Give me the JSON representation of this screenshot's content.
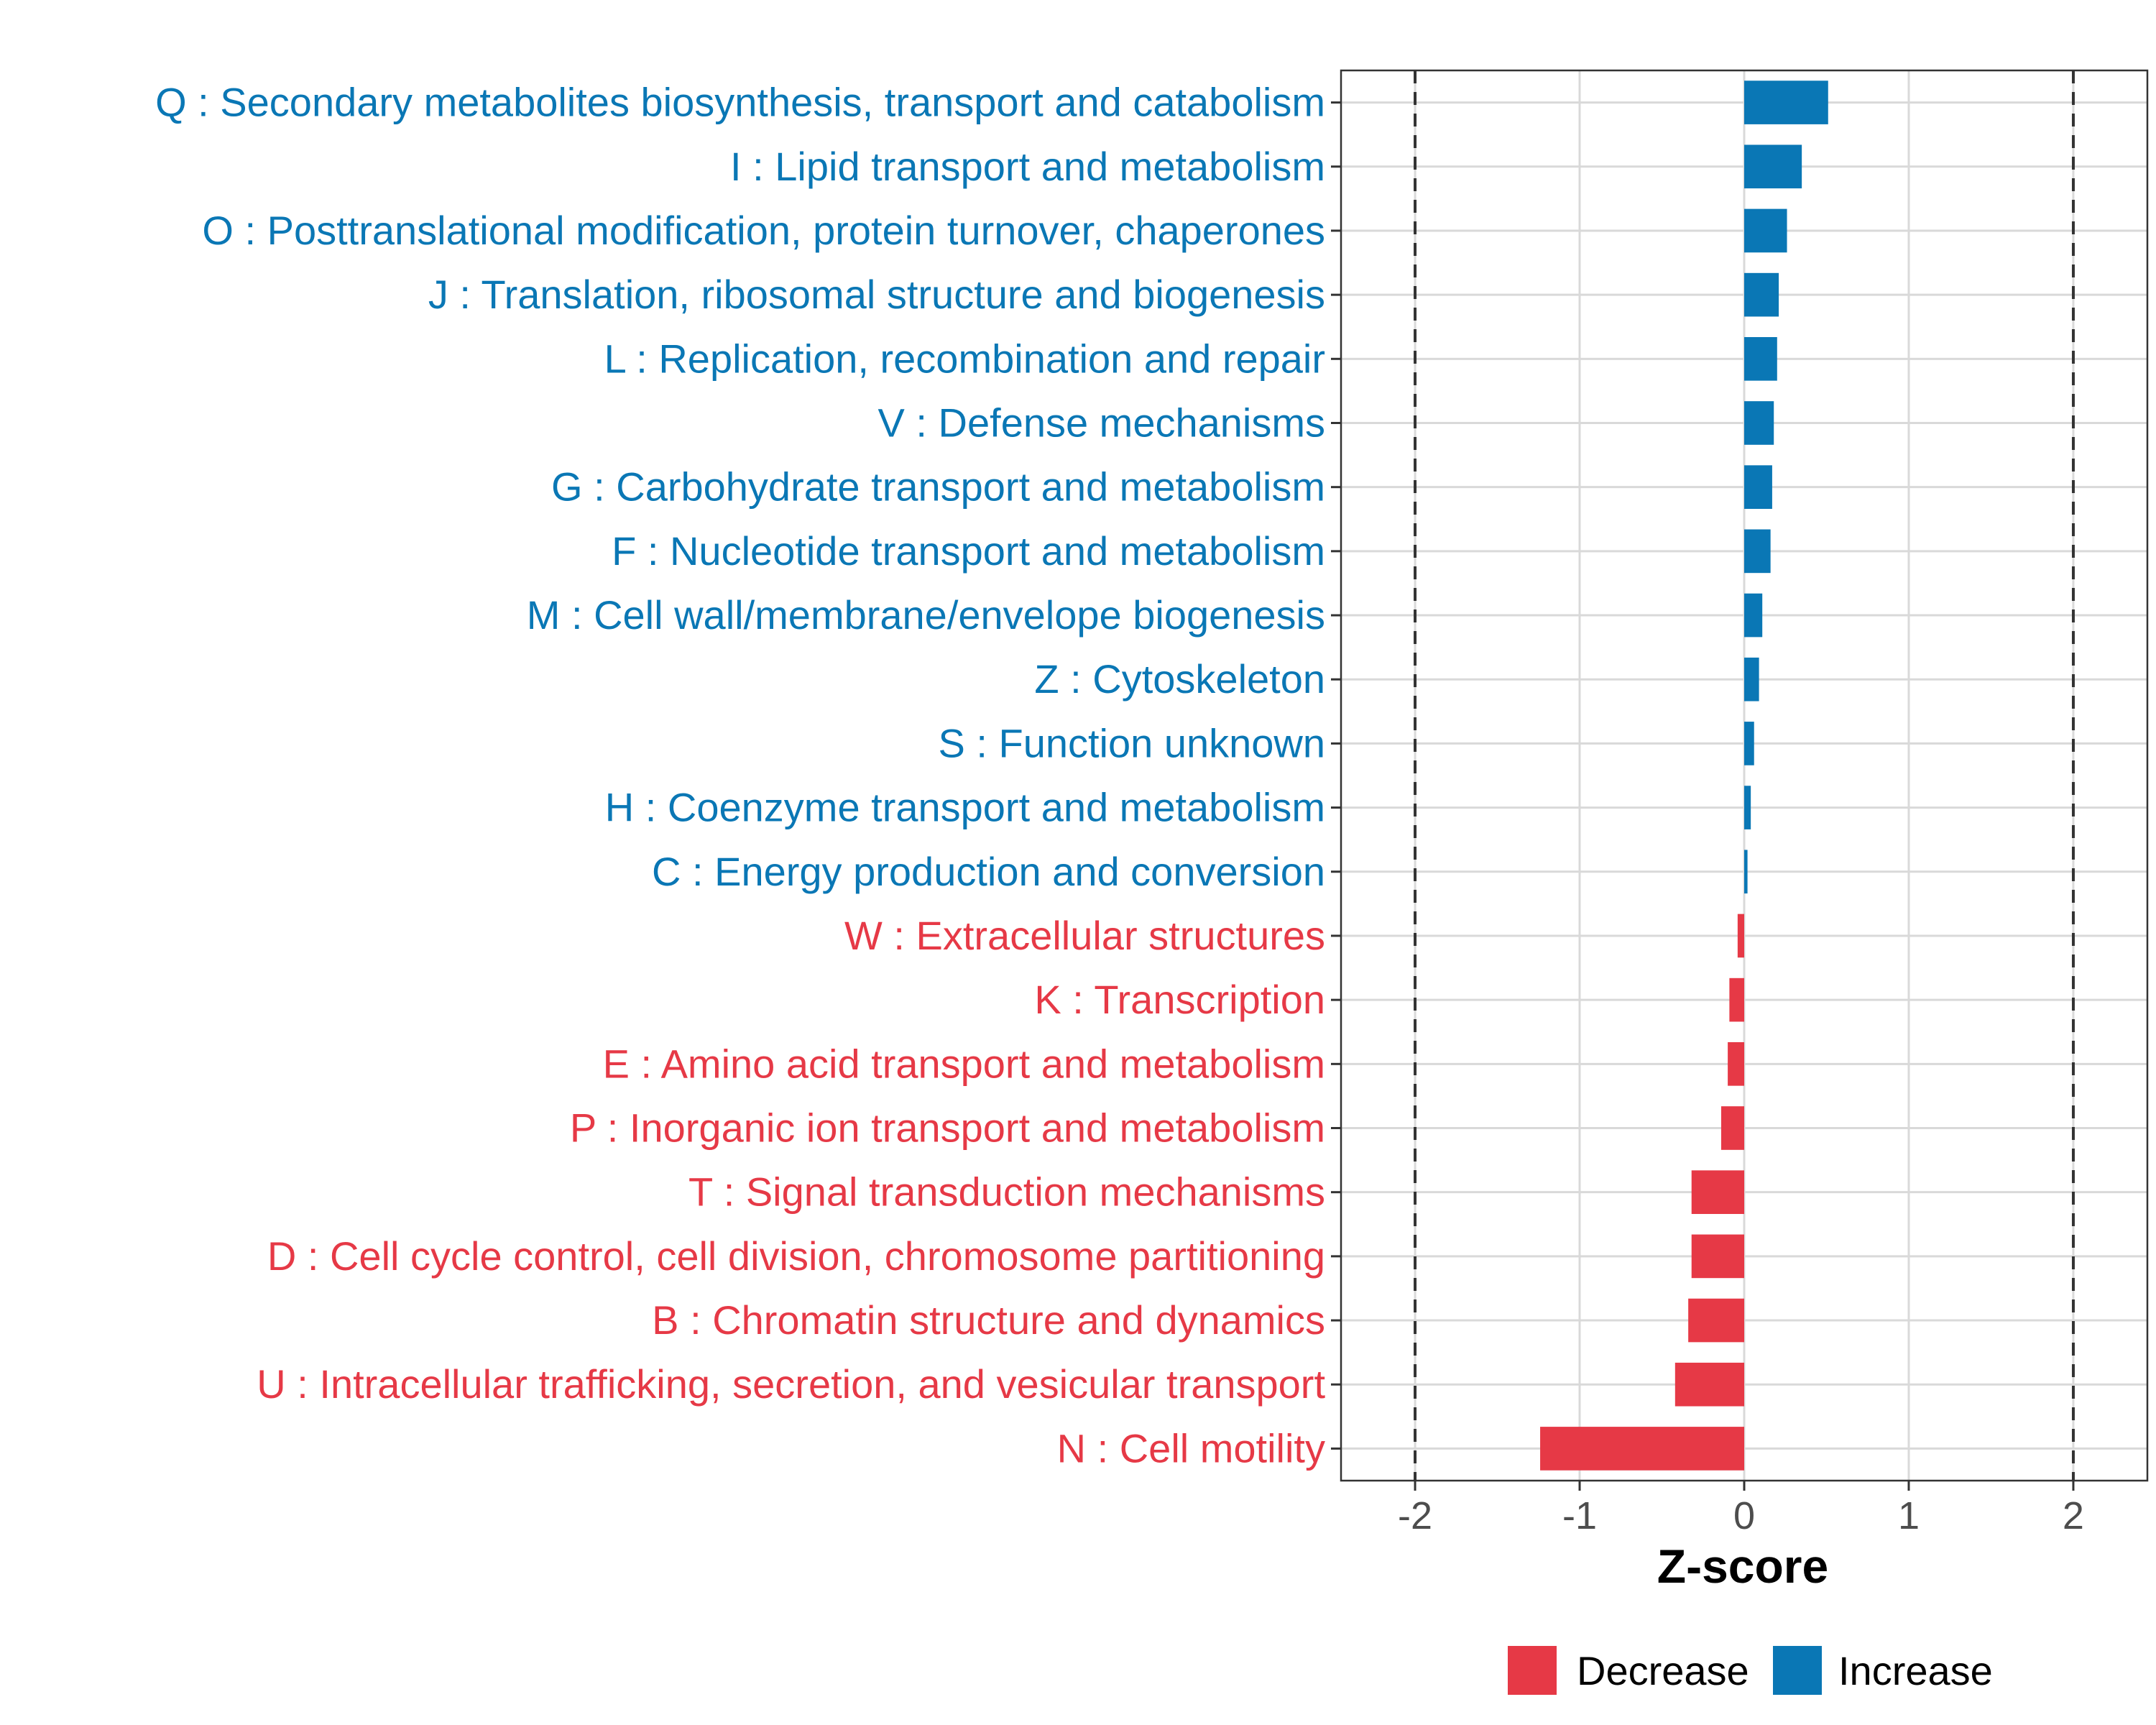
{
  "chart_data": {
    "type": "bar",
    "orientation": "horizontal",
    "title": "",
    "xlabel": "Z-score",
    "ylabel": "",
    "xlim": [
      -2.45,
      2.45
    ],
    "xticks": [
      -2,
      -1,
      0,
      1,
      2
    ],
    "xtick_labels": [
      "-2",
      "-1",
      "0",
      "1",
      "2"
    ],
    "reference_lines": [
      -2,
      2
    ],
    "grid": true,
    "categories": [
      "Q : Secondary metabolites biosynthesis, transport and catabolism",
      "I : Lipid transport and metabolism",
      "O : Posttranslational modification, protein turnover, chaperones",
      "J : Translation, ribosomal structure and biogenesis",
      "L : Replication, recombination and repair",
      "V : Defense mechanisms",
      "G : Carbohydrate transport and metabolism",
      "F : Nucleotide transport and metabolism",
      "M : Cell wall/membrane/envelope biogenesis",
      "Z : Cytoskeleton",
      "S : Function unknown",
      "H : Coenzyme transport and metabolism",
      "C : Energy production and conversion",
      "W : Extracellular structures",
      "K : Transcription",
      "E : Amino acid transport and metabolism",
      "P : Inorganic ion transport and metabolism",
      "T : Signal transduction mechanisms",
      "D : Cell cycle control, cell division, chromosome partitioning",
      "B : Chromatin structure and dynamics",
      "U : Intracellular trafficking, secretion, and vesicular transport",
      "N : Cell motility"
    ],
    "values": [
      0.51,
      0.35,
      0.26,
      0.21,
      0.2,
      0.18,
      0.17,
      0.16,
      0.11,
      0.09,
      0.06,
      0.04,
      0.02,
      -0.04,
      -0.09,
      -0.1,
      -0.14,
      -0.32,
      -0.32,
      -0.34,
      -0.42,
      -1.24
    ],
    "groups": [
      "Increase",
      "Increase",
      "Increase",
      "Increase",
      "Increase",
      "Increase",
      "Increase",
      "Increase",
      "Increase",
      "Increase",
      "Increase",
      "Increase",
      "Increase",
      "Decrease",
      "Decrease",
      "Decrease",
      "Decrease",
      "Decrease",
      "Decrease",
      "Decrease",
      "Decrease",
      "Decrease"
    ],
    "legend": {
      "placement": "bottom",
      "entries": [
        {
          "label": "Decrease",
          "color": "#E63946"
        },
        {
          "label": "Increase",
          "color": "#0A77B5"
        }
      ]
    },
    "colors": {
      "Decrease": "#E63946",
      "Increase": "#0A77B5"
    }
  }
}
